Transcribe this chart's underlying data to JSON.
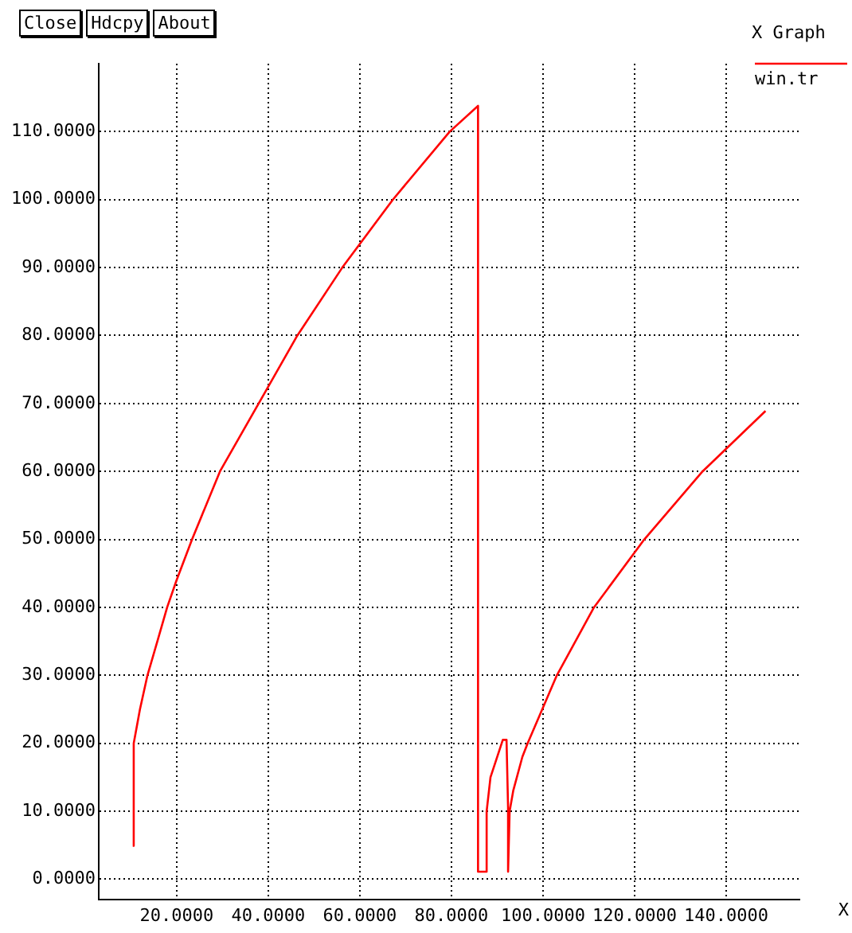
{
  "chart_data": {
    "type": "line",
    "title": "X Graph",
    "xlabel": "X",
    "annotations": [
      "Close",
      "Hdcpy",
      "About"
    ],
    "xlim": [
      3,
      156
    ],
    "ylim": [
      -3,
      120
    ],
    "xticks": [
      {
        "value": 20,
        "label": "20.0000"
      },
      {
        "value": 40,
        "label": "40.0000"
      },
      {
        "value": 60,
        "label": "60.0000"
      },
      {
        "value": 80,
        "label": "80.0000"
      },
      {
        "value": 100,
        "label": "100.0000"
      },
      {
        "value": 120,
        "label": "120.0000"
      },
      {
        "value": 140,
        "label": "140.0000"
      }
    ],
    "yticks": [
      {
        "value": 0,
        "label": "0.0000"
      },
      {
        "value": 10,
        "label": "10.0000"
      },
      {
        "value": 20,
        "label": "20.0000"
      },
      {
        "value": 30,
        "label": "30.0000"
      },
      {
        "value": 40,
        "label": "40.0000"
      },
      {
        "value": 50,
        "label": "50.0000"
      },
      {
        "value": 60,
        "label": "60.0000"
      },
      {
        "value": 70,
        "label": "70.0000"
      },
      {
        "value": 80,
        "label": "80.0000"
      },
      {
        "value": 90,
        "label": "90.0000"
      },
      {
        "value": 100,
        "label": "100.0000"
      },
      {
        "value": 110,
        "label": "110.0000"
      }
    ],
    "grid": true,
    "legend": "top right",
    "marker": "none",
    "line_style": "solid",
    "series": [
      {
        "name": "win.tr",
        "color": "#ff0000",
        "x": [
          10.43,
          10.64,
          12.0,
          13.64,
          15.8,
          17.94,
          20.0,
          23.38,
          29.47,
          37.92,
          46.37,
          56.18,
          67.23,
          79.63,
          85.82,
          85.82,
          87.5,
          87.7,
          88.54,
          91.23,
          92.04,
          92.38,
          92.38,
          92.72,
          93.5,
          95.5,
          96.65,
          103.03,
          111.14,
          122.13,
          134.84,
          148.59
        ],
        "values": [
          4.9,
          20,
          25,
          30,
          35,
          40,
          44,
          50,
          60,
          70,
          80,
          90,
          100,
          110,
          113.8,
          1.1,
          1.1,
          10,
          15,
          20.5,
          20.5,
          10.5,
          1.1,
          10,
          13,
          18,
          20,
          30,
          40,
          50,
          60,
          68.9
        ]
      }
    ]
  }
}
